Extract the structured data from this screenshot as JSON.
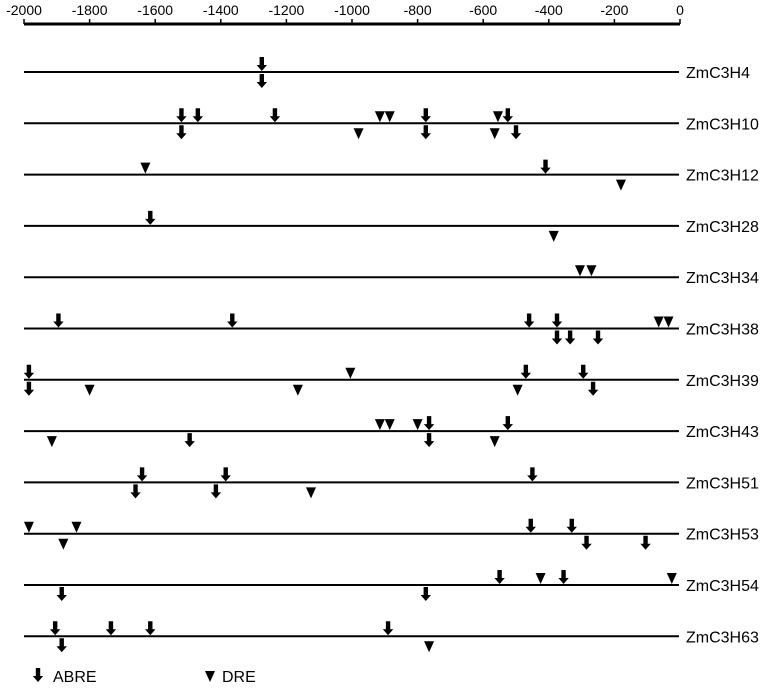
{
  "axis": {
    "min": -2000,
    "max": 0,
    "ticks": [
      "-2000",
      "-1800",
      "-1600",
      "-1400",
      "-1200",
      "-1000",
      "-800",
      "-600",
      "-400",
      "-200",
      "0"
    ],
    "tick_values": [
      -2000,
      -1800,
      -1600,
      -1400,
      -1200,
      -1000,
      -800,
      -600,
      -400,
      -200,
      0
    ]
  },
  "legend": {
    "abre_label": "ABRE",
    "dre_label": "DRE"
  },
  "chart_data": {
    "type": "diagram",
    "description_fields": "positions in bp upstream of start; side above/below line",
    "genes": [
      {
        "name": "ZmC3H4",
        "elements": [
          {
            "type": "ABRE",
            "pos": -1275,
            "side": "above"
          },
          {
            "type": "ABRE",
            "pos": -1275,
            "side": "below"
          }
        ]
      },
      {
        "name": "ZmC3H10",
        "elements": [
          {
            "type": "ABRE",
            "pos": -1520,
            "side": "above"
          },
          {
            "type": "ABRE",
            "pos": -1470,
            "side": "above"
          },
          {
            "type": "ABRE",
            "pos": -1235,
            "side": "above"
          },
          {
            "type": "DRE",
            "pos": -915,
            "side": "above"
          },
          {
            "type": "DRE",
            "pos": -885,
            "side": "above"
          },
          {
            "type": "ABRE",
            "pos": -775,
            "side": "above"
          },
          {
            "type": "DRE",
            "pos": -555,
            "side": "above"
          },
          {
            "type": "ABRE",
            "pos": -525,
            "side": "above"
          },
          {
            "type": "ABRE",
            "pos": -1520,
            "side": "below"
          },
          {
            "type": "DRE",
            "pos": -980,
            "side": "below"
          },
          {
            "type": "ABRE",
            "pos": -775,
            "side": "below"
          },
          {
            "type": "DRE",
            "pos": -565,
            "side": "below"
          },
          {
            "type": "ABRE",
            "pos": -500,
            "side": "below"
          }
        ]
      },
      {
        "name": "ZmC3H12",
        "elements": [
          {
            "type": "DRE",
            "pos": -1630,
            "side": "above"
          },
          {
            "type": "ABRE",
            "pos": -410,
            "side": "above"
          },
          {
            "type": "DRE",
            "pos": -180,
            "side": "below"
          }
        ]
      },
      {
        "name": "ZmC3H28",
        "elements": [
          {
            "type": "ABRE",
            "pos": -1615,
            "side": "above"
          },
          {
            "type": "DRE",
            "pos": -385,
            "side": "below"
          }
        ]
      },
      {
        "name": "ZmC3H34",
        "elements": [
          {
            "type": "DRE",
            "pos": -305,
            "side": "above"
          },
          {
            "type": "DRE",
            "pos": -270,
            "side": "above"
          }
        ]
      },
      {
        "name": "ZmC3H38",
        "elements": [
          {
            "type": "ABRE",
            "pos": -1895,
            "side": "above"
          },
          {
            "type": "ABRE",
            "pos": -1365,
            "side": "above"
          },
          {
            "type": "ABRE",
            "pos": -460,
            "side": "above"
          },
          {
            "type": "ABRE",
            "pos": -375,
            "side": "above"
          },
          {
            "type": "DRE",
            "pos": -65,
            "side": "above"
          },
          {
            "type": "DRE",
            "pos": -35,
            "side": "above"
          },
          {
            "type": "ABRE",
            "pos": -375,
            "side": "below"
          },
          {
            "type": "ABRE",
            "pos": -335,
            "side": "below"
          },
          {
            "type": "ABRE",
            "pos": -250,
            "side": "below"
          }
        ]
      },
      {
        "name": "ZmC3H39",
        "elements": [
          {
            "type": "ABRE",
            "pos": -1985,
            "side": "above"
          },
          {
            "type": "DRE",
            "pos": -1005,
            "side": "above"
          },
          {
            "type": "ABRE",
            "pos": -470,
            "side": "above"
          },
          {
            "type": "ABRE",
            "pos": -295,
            "side": "above"
          },
          {
            "type": "ABRE",
            "pos": -1985,
            "side": "below"
          },
          {
            "type": "DRE",
            "pos": -1800,
            "side": "below"
          },
          {
            "type": "DRE",
            "pos": -1165,
            "side": "below"
          },
          {
            "type": "DRE",
            "pos": -495,
            "side": "below"
          },
          {
            "type": "ABRE",
            "pos": -265,
            "side": "below"
          }
        ]
      },
      {
        "name": "ZmC3H43",
        "elements": [
          {
            "type": "DRE",
            "pos": -915,
            "side": "above"
          },
          {
            "type": "DRE",
            "pos": -885,
            "side": "above"
          },
          {
            "type": "DRE",
            "pos": -800,
            "side": "above"
          },
          {
            "type": "ABRE",
            "pos": -765,
            "side": "above"
          },
          {
            "type": "ABRE",
            "pos": -525,
            "side": "above"
          },
          {
            "type": "DRE",
            "pos": -1915,
            "side": "below"
          },
          {
            "type": "ABRE",
            "pos": -1495,
            "side": "below"
          },
          {
            "type": "ABRE",
            "pos": -765,
            "side": "below"
          },
          {
            "type": "DRE",
            "pos": -565,
            "side": "below"
          }
        ]
      },
      {
        "name": "ZmC3H51",
        "elements": [
          {
            "type": "ABRE",
            "pos": -1640,
            "side": "above"
          },
          {
            "type": "ABRE",
            "pos": -1385,
            "side": "above"
          },
          {
            "type": "ABRE",
            "pos": -450,
            "side": "above"
          },
          {
            "type": "ABRE",
            "pos": -1660,
            "side": "below"
          },
          {
            "type": "ABRE",
            "pos": -1415,
            "side": "below"
          },
          {
            "type": "DRE",
            "pos": -1125,
            "side": "below"
          }
        ]
      },
      {
        "name": "ZmC3H53",
        "elements": [
          {
            "type": "DRE",
            "pos": -1985,
            "side": "above"
          },
          {
            "type": "DRE",
            "pos": -1840,
            "side": "above"
          },
          {
            "type": "ABRE",
            "pos": -455,
            "side": "above"
          },
          {
            "type": "ABRE",
            "pos": -330,
            "side": "above"
          },
          {
            "type": "DRE",
            "pos": -1880,
            "side": "below"
          },
          {
            "type": "ABRE",
            "pos": -285,
            "side": "below"
          },
          {
            "type": "ABRE",
            "pos": -105,
            "side": "below"
          }
        ]
      },
      {
        "name": "ZmC3H54",
        "elements": [
          {
            "type": "ABRE",
            "pos": -550,
            "side": "above"
          },
          {
            "type": "DRE",
            "pos": -425,
            "side": "above"
          },
          {
            "type": "ABRE",
            "pos": -355,
            "side": "above"
          },
          {
            "type": "DRE",
            "pos": -25,
            "side": "above"
          },
          {
            "type": "ABRE",
            "pos": -1885,
            "side": "below"
          },
          {
            "type": "ABRE",
            "pos": -775,
            "side": "below"
          }
        ]
      },
      {
        "name": "ZmC3H63",
        "elements": [
          {
            "type": "ABRE",
            "pos": -1905,
            "side": "above"
          },
          {
            "type": "ABRE",
            "pos": -1735,
            "side": "above"
          },
          {
            "type": "ABRE",
            "pos": -1615,
            "side": "above"
          },
          {
            "type": "ABRE",
            "pos": -890,
            "side": "above"
          },
          {
            "type": "ABRE",
            "pos": -1885,
            "side": "below"
          },
          {
            "type": "DRE",
            "pos": -765,
            "side": "below"
          }
        ]
      }
    ]
  }
}
